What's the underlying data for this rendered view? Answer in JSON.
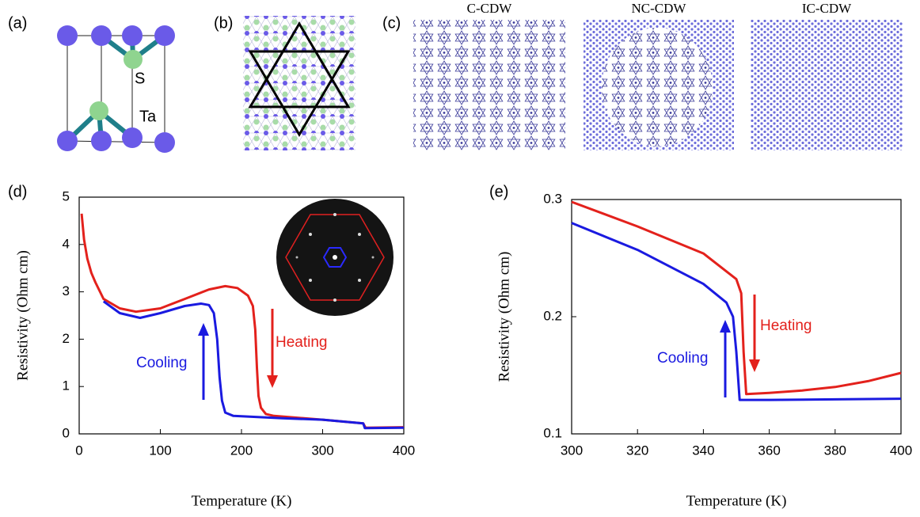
{
  "figure": {
    "panel_a": {
      "label": "(a)",
      "atom_s": "S",
      "atom_ta": "Ta"
    },
    "panel_b": {
      "label": "(b)"
    },
    "panel_c": {
      "label": "(c)",
      "titles": [
        "C-CDW",
        "NC-CDW",
        "IC-CDW"
      ]
    }
  },
  "chart_data": [
    {
      "type": "line",
      "panel_label": "(d)",
      "xlabel": "Temperature (K)",
      "ylabel": "Resistivity (Ohm cm)",
      "xlim": [
        0,
        400
      ],
      "ylim": [
        0,
        5
      ],
      "xticks": [
        0,
        100,
        200,
        300,
        400
      ],
      "yticks": [
        0,
        1,
        2,
        3,
        4,
        5
      ],
      "series": [
        {
          "name": "Heating",
          "color": "#e3211c",
          "x": [
            3,
            6,
            10,
            15,
            20,
            30,
            50,
            70,
            100,
            130,
            160,
            180,
            195,
            208,
            214,
            217,
            219,
            221,
            224,
            230,
            240,
            300,
            350,
            353,
            400
          ],
          "values": [
            4.65,
            4.1,
            3.7,
            3.4,
            3.2,
            2.85,
            2.65,
            2.58,
            2.65,
            2.85,
            3.05,
            3.12,
            3.08,
            2.92,
            2.7,
            2.2,
            1.4,
            0.8,
            0.55,
            0.42,
            0.38,
            0.3,
            0.22,
            0.13,
            0.14
          ]
        },
        {
          "name": "Cooling",
          "color": "#1a1ae0",
          "x": [
            30,
            50,
            75,
            100,
            130,
            150,
            160,
            166,
            170,
            173,
            176,
            180,
            190,
            250,
            300,
            350,
            352,
            400
          ],
          "values": [
            2.8,
            2.55,
            2.45,
            2.55,
            2.7,
            2.75,
            2.72,
            2.55,
            2.0,
            1.2,
            0.7,
            0.45,
            0.38,
            0.33,
            0.3,
            0.22,
            0.12,
            0.13
          ]
        }
      ],
      "annotations": [
        {
          "text": "Heating",
          "color": "#e3211c"
        },
        {
          "text": "Cooling",
          "color": "#1a1ae0"
        }
      ]
    },
    {
      "type": "line",
      "panel_label": "(e)",
      "xlabel": "Temperature (K)",
      "ylabel": "Resistivity (Ohm cm)",
      "xlim": [
        300,
        400
      ],
      "ylim": [
        0.1,
        0.3
      ],
      "xticks": [
        300,
        320,
        340,
        360,
        380,
        400
      ],
      "yticks": [
        0.1,
        0.2,
        0.3
      ],
      "series": [
        {
          "name": "Heating",
          "color": "#e3211c",
          "x": [
            300,
            320,
            340,
            350,
            351.5,
            352.2,
            353,
            360,
            370,
            380,
            390,
            400
          ],
          "values": [
            0.298,
            0.277,
            0.254,
            0.232,
            0.22,
            0.17,
            0.134,
            0.135,
            0.137,
            0.14,
            0.145,
            0.152
          ]
        },
        {
          "name": "Cooling",
          "color": "#1a1ae0",
          "x": [
            300,
            320,
            340,
            347,
            349,
            350,
            351,
            360,
            400
          ],
          "values": [
            0.28,
            0.257,
            0.228,
            0.212,
            0.2,
            0.17,
            0.129,
            0.129,
            0.13
          ]
        }
      ],
      "annotations": [
        {
          "text": "Heating",
          "color": "#e3211c"
        },
        {
          "text": "Cooling",
          "color": "#1a1ae0"
        }
      ]
    }
  ]
}
